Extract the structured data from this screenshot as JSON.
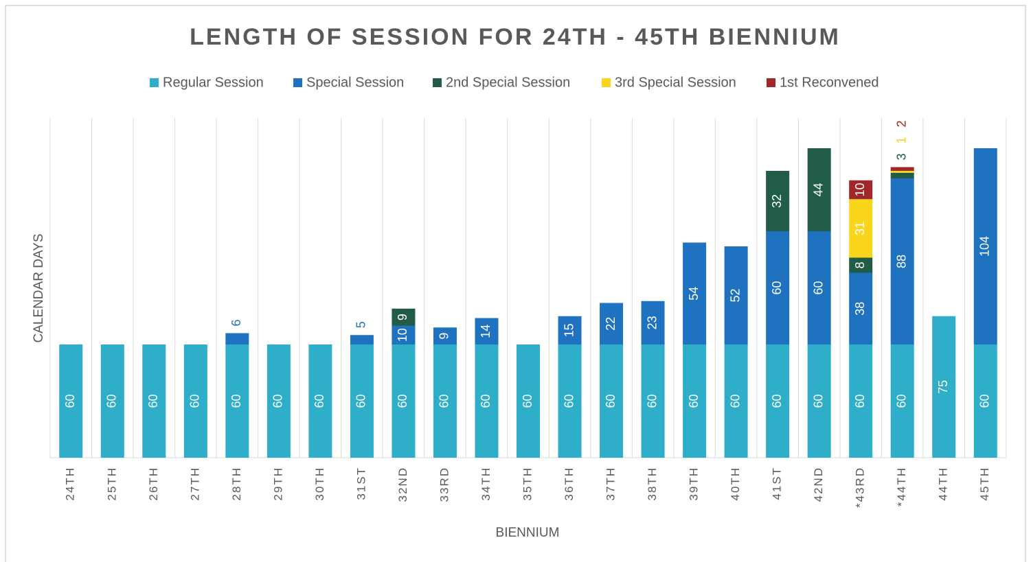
{
  "chart_data": {
    "type": "stacked_bar",
    "title": "LENGTH OF SESSION FOR 24TH - 45TH BIENNIUM",
    "x_label": "BIENNIUM",
    "y_label": "CALENDAR DAYS",
    "categories": [
      "24TH",
      "25TH",
      "26TH",
      "27TH",
      "28TH",
      "29TH",
      "30TH",
      "31ST",
      "32ND",
      "33RD",
      "34TH",
      "35TH",
      "36TH",
      "37TH",
      "38TH",
      "39TH",
      "40TH",
      "41ST",
      "42ND",
      "*43RD",
      "*44TH",
      "44TH",
      "45TH"
    ],
    "ylim": [
      0,
      180
    ],
    "series": [
      {
        "name": "Regular Session",
        "color": "#2eaec8",
        "values": [
          60,
          60,
          60,
          60,
          60,
          60,
          60,
          60,
          60,
          60,
          60,
          60,
          60,
          60,
          60,
          60,
          60,
          60,
          60,
          60,
          60,
          75,
          60
        ]
      },
      {
        "name": "Special Session",
        "color": "#1f72c0",
        "values": [
          null,
          null,
          null,
          null,
          6,
          null,
          null,
          5,
          10,
          9,
          14,
          null,
          15,
          22,
          23,
          54,
          52,
          60,
          60,
          38,
          88,
          null,
          104
        ]
      },
      {
        "name": "2nd Special Session",
        "color": "#215c47",
        "values": [
          null,
          null,
          null,
          null,
          null,
          null,
          null,
          null,
          9,
          null,
          null,
          null,
          null,
          null,
          null,
          null,
          null,
          32,
          44,
          8,
          3,
          null,
          null
        ]
      },
      {
        "name": "3rd Special Session",
        "color": "#f9d61b",
        "values": [
          null,
          null,
          null,
          null,
          null,
          null,
          null,
          null,
          null,
          null,
          null,
          null,
          null,
          null,
          null,
          null,
          null,
          null,
          null,
          31,
          1,
          null,
          null
        ]
      },
      {
        "name": "1st Reconvened",
        "color": "#a0282a",
        "values": [
          null,
          null,
          null,
          null,
          null,
          null,
          null,
          null,
          null,
          null,
          null,
          null,
          null,
          null,
          null,
          null,
          null,
          null,
          null,
          10,
          2,
          null,
          null
        ]
      }
    ],
    "grid": true,
    "legend": "top"
  }
}
